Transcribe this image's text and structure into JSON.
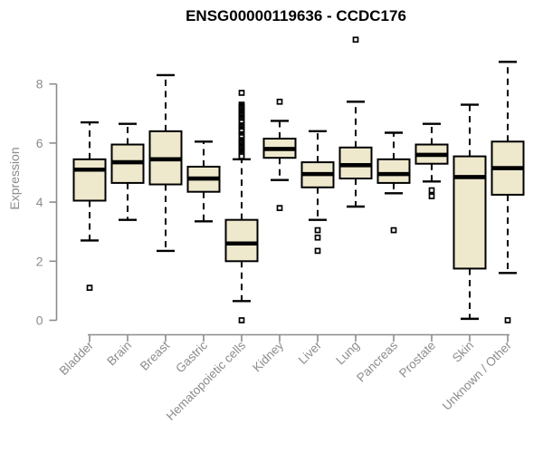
{
  "chart_data": {
    "type": "boxplot",
    "title": "ENSG00000119636 - CCDC176",
    "ylabel": "Expression",
    "xlabel": "",
    "ylim": [
      0,
      8
    ],
    "yticks": [
      0,
      2,
      4,
      6,
      8
    ],
    "grid": false,
    "legend": false,
    "box_fill": "#EEE8CD",
    "box_stroke": "#000000",
    "axis_color": "#8C8C8C",
    "tick_label_color": "#8C8C8C",
    "title_color": "#000000",
    "categories": [
      "Bladder",
      "Brain",
      "Breast",
      "Gastric",
      "Hematopoietic cells",
      "Kidney",
      "Liver",
      "Lung",
      "Pancreas",
      "Prostate",
      "Skin",
      "Unknown / Other"
    ],
    "boxes": [
      {
        "category": "Bladder",
        "whisker_low": 2.7,
        "q1": 4.05,
        "median": 5.1,
        "q3": 5.45,
        "whisker_high": 6.7,
        "outliers": [
          1.1
        ]
      },
      {
        "category": "Brain",
        "whisker_low": 3.4,
        "q1": 4.65,
        "median": 5.35,
        "q3": 5.95,
        "whisker_high": 6.65,
        "outliers": []
      },
      {
        "category": "Breast",
        "whisker_low": 2.35,
        "q1": 4.6,
        "median": 5.45,
        "q3": 6.4,
        "whisker_high": 8.3,
        "outliers": []
      },
      {
        "category": "Gastric",
        "whisker_low": 3.35,
        "q1": 4.35,
        "median": 4.8,
        "q3": 5.2,
        "whisker_high": 6.05,
        "outliers": []
      },
      {
        "category": "Hematopoietic cells",
        "whisker_low": 0.65,
        "q1": 2.0,
        "median": 2.6,
        "q3": 3.4,
        "whisker_high": 5.45,
        "outliers": [
          7.7,
          7.3,
          7.25,
          7.2,
          7.15,
          7.1,
          7.05,
          7.0,
          6.95,
          6.9,
          6.85,
          6.8,
          6.75,
          6.7,
          6.6,
          6.55,
          6.5,
          6.45,
          6.4,
          6.3,
          6.25,
          6.2,
          6.1,
          6.05,
          6.0,
          5.95,
          5.9,
          5.85,
          5.8,
          5.75,
          5.7,
          5.65,
          5.6,
          5.55,
          0.0
        ]
      },
      {
        "category": "Kidney",
        "whisker_low": 4.75,
        "q1": 5.5,
        "median": 5.8,
        "q3": 6.15,
        "whisker_high": 6.75,
        "outliers": [
          7.4,
          3.8
        ]
      },
      {
        "category": "Liver",
        "whisker_low": 3.4,
        "q1": 4.5,
        "median": 4.95,
        "q3": 5.35,
        "whisker_high": 6.4,
        "outliers": [
          3.05,
          2.8,
          2.35
        ]
      },
      {
        "category": "Lung",
        "whisker_low": 3.85,
        "q1": 4.8,
        "median": 5.25,
        "q3": 5.85,
        "whisker_high": 7.4,
        "outliers": [
          9.5
        ]
      },
      {
        "category": "Pancreas",
        "whisker_low": 4.3,
        "q1": 4.65,
        "median": 4.95,
        "q3": 5.45,
        "whisker_high": 6.35,
        "outliers": [
          3.05
        ]
      },
      {
        "category": "Prostate",
        "whisker_low": 4.7,
        "q1": 5.3,
        "median": 5.6,
        "q3": 5.95,
        "whisker_high": 6.65,
        "outliers": [
          4.4,
          4.2
        ]
      },
      {
        "category": "Skin",
        "whisker_low": 0.05,
        "q1": 1.75,
        "median": 4.85,
        "q3": 5.55,
        "whisker_high": 7.3,
        "outliers": []
      },
      {
        "category": "Unknown / Other",
        "whisker_low": 1.6,
        "q1": 4.25,
        "median": 5.15,
        "q3": 6.05,
        "whisker_high": 8.75,
        "outliers": [
          0.0
        ]
      }
    ]
  }
}
